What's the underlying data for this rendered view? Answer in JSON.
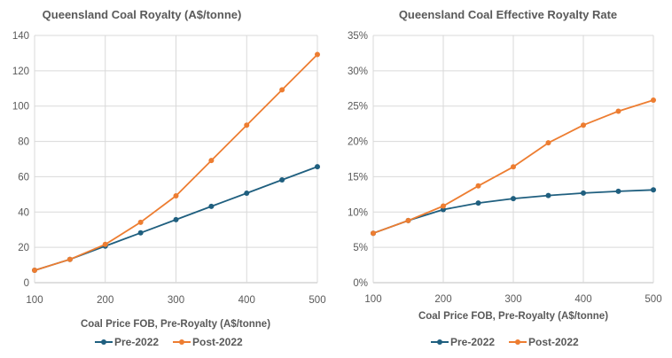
{
  "chart_data": [
    {
      "type": "line",
      "title": "Queensland Coal Royalty (A$/tonne)",
      "xlabel": "Coal Price FOB, Pre-Royalty  (A$/tonne)",
      "ylabel": "",
      "x": [
        100,
        150,
        200,
        250,
        300,
        350,
        400,
        450,
        500
      ],
      "xlim": [
        100,
        500
      ],
      "ylim": [
        0,
        140
      ],
      "xticks": [
        100,
        200,
        300,
        400,
        500
      ],
      "xtick_labels": [
        "100",
        "200",
        "300",
        "400",
        "500"
      ],
      "yticks": [
        0,
        20,
        40,
        60,
        80,
        100,
        120,
        140
      ],
      "ytick_labels": [
        "0",
        "20",
        "40",
        "60",
        "80",
        "100",
        "120",
        "140"
      ],
      "grid": true,
      "legend_position": "bottom",
      "series": [
        {
          "name": "Pre-2022",
          "color": "#1f5f7f",
          "values": [
            7,
            13.2,
            20.7,
            28.2,
            35.7,
            43.2,
            50.7,
            58.2,
            65.7
          ]
        },
        {
          "name": "Post-2022",
          "color": "#ed7d31",
          "values": [
            7,
            13.2,
            21.7,
            34.2,
            49.2,
            69.2,
            89.2,
            109.2,
            129.2
          ]
        }
      ]
    },
    {
      "type": "line",
      "title": "Queensland Coal Effective Royalty Rate",
      "xlabel": "Coal Price FOB, Pre-Royalty  (A$/tonne)",
      "ylabel": "",
      "x": [
        100,
        150,
        200,
        250,
        300,
        350,
        400,
        450,
        500
      ],
      "xlim": [
        100,
        500
      ],
      "ylim": [
        0,
        35
      ],
      "xticks": [
        100,
        200,
        300,
        400,
        500
      ],
      "xtick_labels": [
        "100",
        "200",
        "300",
        "400",
        "500"
      ],
      "yticks": [
        0,
        5,
        10,
        15,
        20,
        25,
        30,
        35
      ],
      "ytick_labels": [
        "0%",
        "5%",
        "10%",
        "15%",
        "20%",
        "25%",
        "30%",
        "35%"
      ],
      "grid": true,
      "legend_position": "bottom",
      "series": [
        {
          "name": "Pre-2022",
          "color": "#1f5f7f",
          "values": [
            7,
            8.8,
            10.35,
            11.28,
            11.9,
            12.34,
            12.68,
            12.93,
            13.14
          ]
        },
        {
          "name": "Post-2022",
          "color": "#ed7d31",
          "values": [
            7,
            8.8,
            10.85,
            13.7,
            16.4,
            19.8,
            22.3,
            24.27,
            25.84
          ]
        }
      ]
    }
  ]
}
